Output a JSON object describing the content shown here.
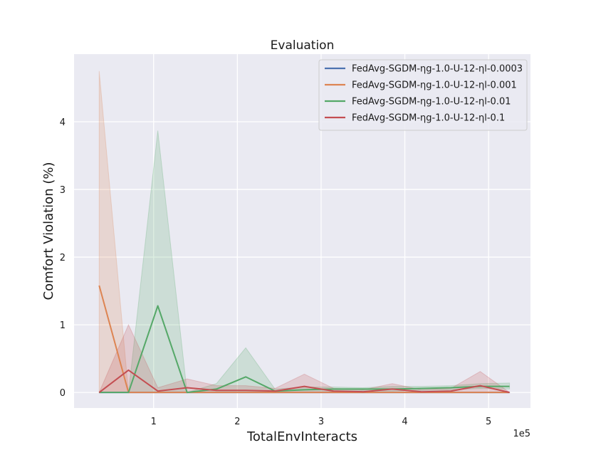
{
  "chart_data": {
    "type": "line",
    "title": "Evaluation",
    "xlabel": "TotalEnvInteracts",
    "ylabel": "Comfort Violation (%)",
    "x_scale_label": "1e5",
    "xlim": [
      0.05,
      5.5
    ],
    "ylim": [
      -0.23,
      5.0
    ],
    "x_ticks": [
      1,
      2,
      3,
      4,
      5
    ],
    "x_tick_labels": [
      "1",
      "2",
      "3",
      "4",
      "5"
    ],
    "y_ticks": [
      0,
      1,
      2,
      3,
      4
    ],
    "y_tick_labels": [
      "0",
      "1",
      "2",
      "3",
      "4"
    ],
    "grid": true,
    "legend_position": "top-right",
    "x": [
      0.35,
      0.7,
      1.05,
      1.4,
      1.75,
      2.1,
      2.45,
      2.8,
      3.15,
      3.5,
      3.85,
      4.2,
      4.55,
      4.9,
      5.25
    ],
    "series": [
      {
        "name": "FedAvg-SGDM-ηg-1.0-U-12-ηl-0.0003",
        "color": "#4c72b0",
        "values": [
          0,
          0,
          0,
          0,
          0,
          0,
          0,
          0,
          0,
          0,
          0,
          0,
          0,
          0,
          0
        ],
        "lower": [
          0,
          0,
          0,
          0,
          0,
          0,
          0,
          0,
          0,
          0,
          0,
          0,
          0,
          0,
          0
        ],
        "upper": [
          0,
          0,
          0,
          0,
          0,
          0,
          0,
          0,
          0,
          0,
          0,
          0,
          0,
          0,
          0
        ]
      },
      {
        "name": "FedAvg-SGDM-ηg-1.0-U-12-ηl-0.001",
        "color": "#dd8452",
        "values": [
          1.58,
          0,
          0,
          0,
          0,
          0,
          0,
          0,
          0,
          0,
          0,
          0,
          0,
          0,
          0
        ],
        "lower": [
          0,
          0,
          0,
          0,
          0,
          0,
          0,
          0,
          0,
          0,
          0,
          0,
          0,
          0,
          0
        ],
        "upper": [
          4.75,
          0,
          0,
          0,
          0,
          0,
          0,
          0,
          0,
          0,
          0,
          0,
          0,
          0,
          0
        ]
      },
      {
        "name": "FedAvg-SGDM-ηg-1.0-U-12-ηl-0.01",
        "color": "#55a868",
        "values": [
          0,
          0,
          1.28,
          0,
          0.05,
          0.23,
          0.02,
          0.04,
          0.05,
          0.05,
          0.05,
          0.06,
          0.07,
          0.09,
          0.09
        ],
        "lower": [
          0,
          0,
          0,
          0,
          0,
          0,
          0,
          0,
          0,
          0.02,
          0.02,
          0.03,
          0.04,
          0.06,
          0.05
        ],
        "upper": [
          0,
          0,
          3.87,
          0,
          0.13,
          0.66,
          0.05,
          0.08,
          0.08,
          0.07,
          0.09,
          0.09,
          0.1,
          0.13,
          0.14
        ]
      },
      {
        "name": "FedAvg-SGDM-ηg-1.0-U-12-ηl-0.1",
        "color": "#c44e52",
        "values": [
          0,
          0.33,
          0.02,
          0.07,
          0.03,
          0.03,
          0.02,
          0.09,
          0.02,
          0.01,
          0.05,
          0.01,
          0.02,
          0.1,
          0
        ],
        "lower": [
          0,
          0,
          0,
          0,
          0,
          0,
          0,
          0,
          0,
          0,
          0,
          0,
          0,
          0,
          0
        ],
        "upper": [
          0,
          1.0,
          0.07,
          0.2,
          0.1,
          0.1,
          0.06,
          0.27,
          0.06,
          0.04,
          0.13,
          0.04,
          0.06,
          0.31,
          0
        ]
      }
    ]
  }
}
